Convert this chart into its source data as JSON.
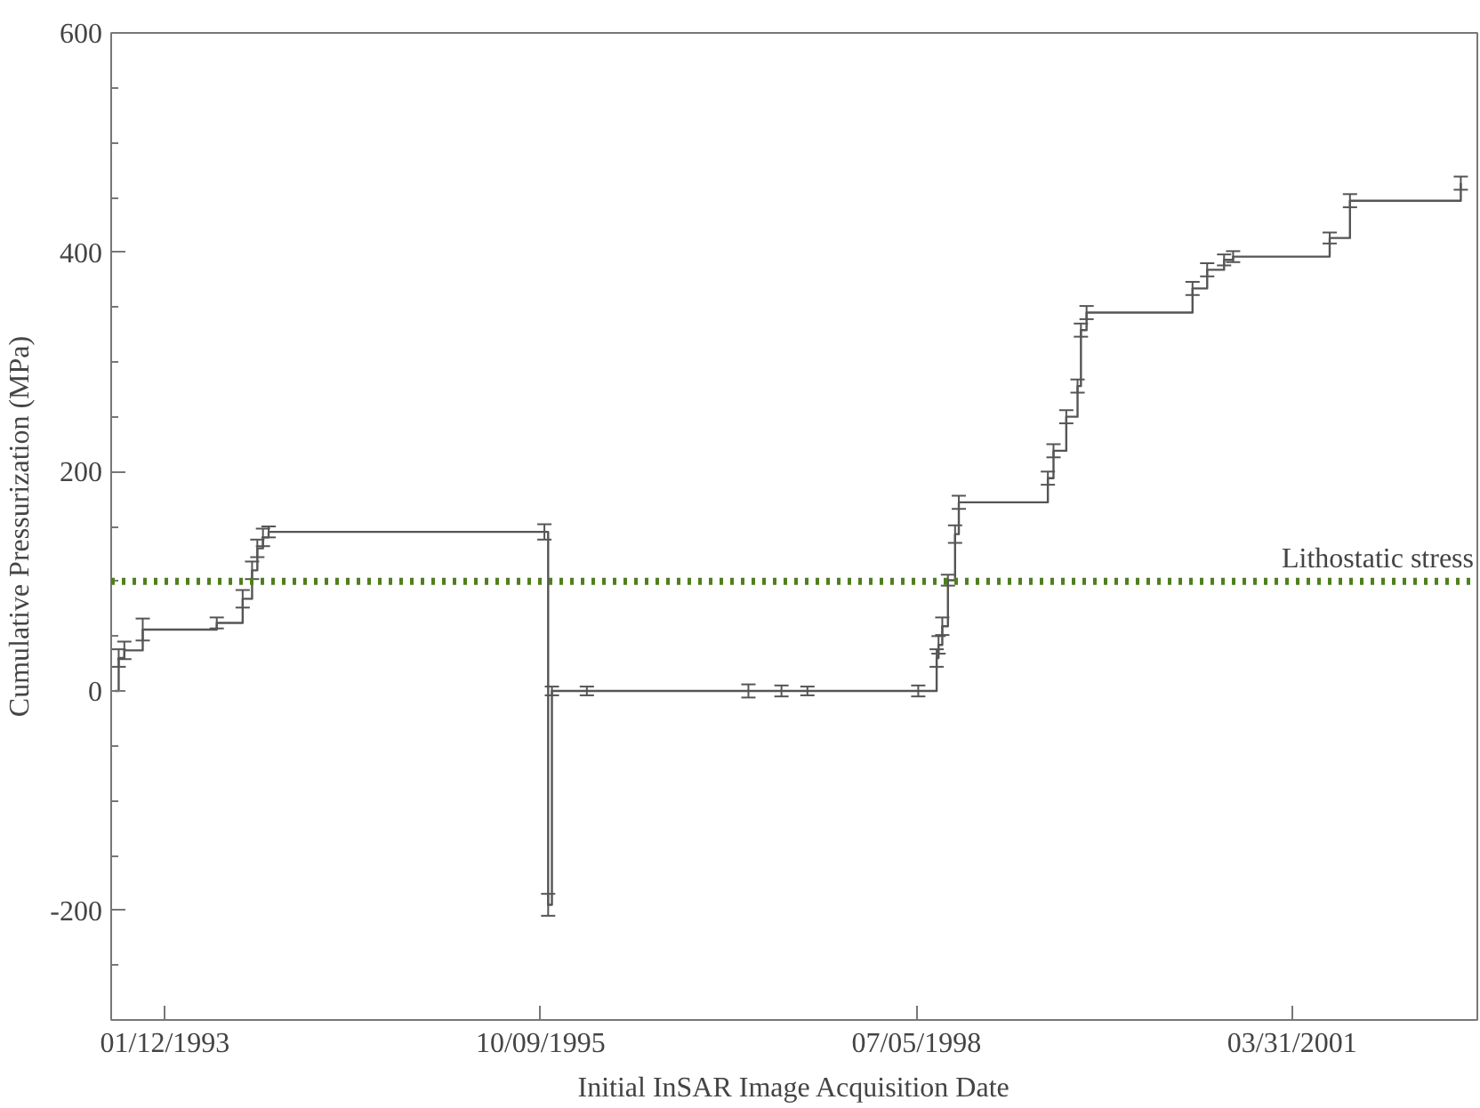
{
  "chart_data": {
    "type": "step",
    "xlabel": "Initial InSAR Image Acquisition Date",
    "ylabel": "Cumulative Pressurization (MPa)",
    "x": [
      "1992-09-01",
      "1992-09-11",
      "1992-09-26",
      "1992-11-14",
      "1993-05-30",
      "1993-08-07",
      "1993-09-01",
      "1993-09-15",
      "1993-09-30",
      "1993-10-15",
      "1995-10-19",
      "1995-10-29",
      "1995-11-08",
      "1996-02-09",
      "1997-04-14",
      "1997-07-11",
      "1997-09-18",
      "1998-07-10",
      "1998-08-28",
      "1998-09-02",
      "1998-09-12",
      "1998-09-27",
      "1998-10-16",
      "1998-10-26",
      "1999-06-20",
      "1999-07-05",
      "1999-08-08",
      "1999-09-07",
      "1999-09-16",
      "1999-10-01",
      "2000-07-09",
      "2000-08-17",
      "2000-10-01",
      "2000-10-25",
      "2001-07-09",
      "2001-09-01",
      "2002-06-23"
    ],
    "series": [
      {
        "color": "#555555",
        "values": [
          0,
          30,
          37,
          56,
          62,
          84,
          110,
          130,
          140,
          145,
          145,
          -195,
          0,
          0,
          0,
          0,
          0,
          0,
          30,
          42,
          59,
          101,
          143,
          172,
          194,
          219,
          250,
          278,
          329,
          345,
          367,
          384,
          393,
          396,
          413,
          447,
          463
        ],
        "errors": [
          null,
          8,
          8,
          10,
          5,
          8,
          8,
          8,
          8,
          5,
          7,
          10,
          4,
          4,
          6,
          5,
          4,
          5,
          8,
          8,
          8,
          5,
          8,
          6,
          6,
          6,
          6,
          6,
          6,
          6,
          6,
          6,
          5,
          5,
          5,
          6,
          6
        ]
      }
    ],
    "xlim": [
      "1992-08-22",
      "2002-08-06"
    ],
    "ylim": [
      -300,
      600
    ],
    "xticks": [
      {
        "value": "1993-01-12",
        "label": "01/12/1993"
      },
      {
        "value": "1995-10-09",
        "label": "10/09/1995"
      },
      {
        "value": "1998-07-05",
        "label": "07/05/1998"
      },
      {
        "value": "2001-03-31",
        "label": "03/31/2001"
      }
    ],
    "yticks": [
      {
        "value": -250,
        "label": null
      },
      -200,
      {
        "value": -150,
        "label": null
      },
      {
        "value": -100,
        "label": null
      },
      {
        "value": -50,
        "label": null
      },
      0,
      {
        "value": 50,
        "label": null
      },
      {
        "value": 100,
        "label": null
      },
      {
        "value": 150,
        "label": null
      },
      200,
      {
        "value": 250,
        "label": null
      },
      {
        "value": 300,
        "label": null
      },
      {
        "value": 350,
        "label": null
      },
      400,
      {
        "value": 450,
        "label": null
      },
      {
        "value": 500,
        "label": null
      },
      {
        "value": 550,
        "label": null
      },
      600
    ],
    "ref_lines": [
      {
        "axis": "y",
        "value": 100,
        "label": "Lithostatic stress",
        "color": "#4f7f1f",
        "line_style": "dotted"
      }
    ],
    "grid": false
  }
}
